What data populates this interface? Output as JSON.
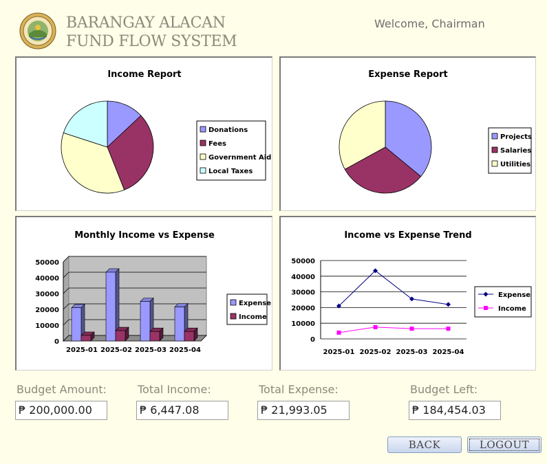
{
  "header": {
    "title_line1": "BARANGAY ALACAN",
    "title_line2": "FUND FLOW SYSTEM",
    "welcome": "Welcome, Chairman"
  },
  "colors": {
    "periwinkle": "#9999ff",
    "plum": "#993366",
    "cream": "#ffffcc",
    "light_cyan": "#ccffff",
    "navy": "#000080",
    "magenta": "#ff00ff",
    "page_bg": "#fffee9"
  },
  "chart_data": [
    {
      "id": "income_report",
      "type": "pie",
      "title": "Income Report",
      "labels": [
        "Donations",
        "Fees",
        "Government Aid",
        "Local Taxes"
      ],
      "values": [
        13,
        31,
        36,
        20
      ],
      "colors": [
        "#9999ff",
        "#993366",
        "#ffffcc",
        "#ccffff"
      ],
      "legend": "right"
    },
    {
      "id": "expense_report",
      "type": "pie",
      "title": "Expense Report",
      "labels": [
        "Projects",
        "Salaries",
        "Utilities"
      ],
      "values": [
        36,
        31,
        33
      ],
      "colors": [
        "#9999ff",
        "#993366",
        "#ffffcc"
      ],
      "legend": "right"
    },
    {
      "id": "monthly_bar",
      "type": "bar",
      "title": "Monthly Income vs Expense",
      "categories": [
        "2025-01",
        "2025-02",
        "2025-03",
        "2025-04"
      ],
      "series": [
        {
          "name": "Expense",
          "values": [
            21000,
            43500,
            25000,
            21500
          ],
          "color": "#9999ff"
        },
        {
          "name": "Income",
          "values": [
            3500,
            6500,
            6000,
            6000
          ],
          "color": "#993366"
        }
      ],
      "ylim": [
        0,
        50000
      ],
      "yticks": [
        "50000",
        "40000",
        "30000",
        "20000",
        "10000",
        "0"
      ],
      "grid": true,
      "legend": "right"
    },
    {
      "id": "trend_line",
      "type": "line",
      "title": "Income vs Expense Trend",
      "categories": [
        "2025-01",
        "2025-02",
        "2025-03",
        "2025-04"
      ],
      "series": [
        {
          "name": "Expense",
          "values": [
            21000,
            43500,
            25500,
            22000
          ],
          "color": "#000080"
        },
        {
          "name": "Income",
          "values": [
            4000,
            7500,
            6500,
            6500
          ],
          "color": "#ff00ff"
        }
      ],
      "ylim": [
        0,
        50000
      ],
      "yticks": [
        "50000",
        "40000",
        "30000",
        "20000",
        "10000",
        "0"
      ],
      "grid": true,
      "legend": "right"
    }
  ],
  "summary": {
    "budget_label": "Budget Amount:",
    "budget_value": "₱ 200,000.00",
    "income_label": "Total Income:",
    "income_value": "₱ 6,447.08",
    "expense_label": "Total Expense:",
    "expense_value": "₱ 21,993.05",
    "left_label": "Budget Left:",
    "left_value": "₱ 184,454.03"
  },
  "buttons": {
    "back": "BACK",
    "logout": "LOGOUT"
  }
}
